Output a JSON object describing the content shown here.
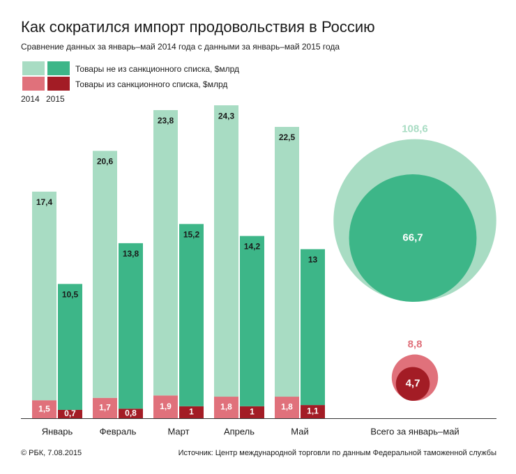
{
  "chart_data": {
    "type": "bar",
    "title": "Как сократился импорт продовольствия в Россию",
    "subtitle": "Сравнение данных за январь–май 2014 года с данными за январь–май 2015 года",
    "years": [
      "2014",
      "2015"
    ],
    "categories": [
      "Январь",
      "Февраль",
      "Март",
      "Апрель",
      "Май"
    ],
    "series": [
      {
        "name": "Товары не из санкционного списка,  $млрд",
        "colors": [
          "#a8dcc3",
          "#3db688"
        ],
        "values": [
          [
            17.4,
            10.5
          ],
          [
            20.6,
            13.8
          ],
          [
            23.8,
            15.2
          ],
          [
            24.3,
            14.2
          ],
          [
            22.5,
            13
          ]
        ],
        "value_labels": [
          [
            "17,4",
            "10,5"
          ],
          [
            "20,6",
            "13,8"
          ],
          [
            "23,8",
            "15,2"
          ],
          [
            "24,3",
            "14,2"
          ],
          [
            "22,5",
            "13"
          ]
        ],
        "totals": [
          108.6,
          66.7
        ],
        "total_labels": [
          "108,6",
          "66,7"
        ]
      },
      {
        "name": "Товары из санкционного списка, $млрд",
        "colors": [
          "#e0717b",
          "#a31c25"
        ],
        "values": [
          [
            1.5,
            0.7
          ],
          [
            1.7,
            0.8
          ],
          [
            1.9,
            1
          ],
          [
            1.8,
            1
          ],
          [
            1.8,
            1.1
          ]
        ],
        "value_labels": [
          [
            "1,5",
            "0,7"
          ],
          [
            "1,7",
            "0,8"
          ],
          [
            "1,9",
            "1"
          ],
          [
            "1,8",
            "1"
          ],
          [
            "1,8",
            "1,1"
          ]
        ],
        "totals": [
          8.8,
          4.7
        ],
        "total_labels": [
          "8,8",
          "4,7"
        ]
      }
    ],
    "total_category": "Всего за январь–май",
    "credit": "© РБК, 7.08.2015",
    "source": "Источник: Центр международной торговли по данным Федеральной таможенной службы"
  }
}
